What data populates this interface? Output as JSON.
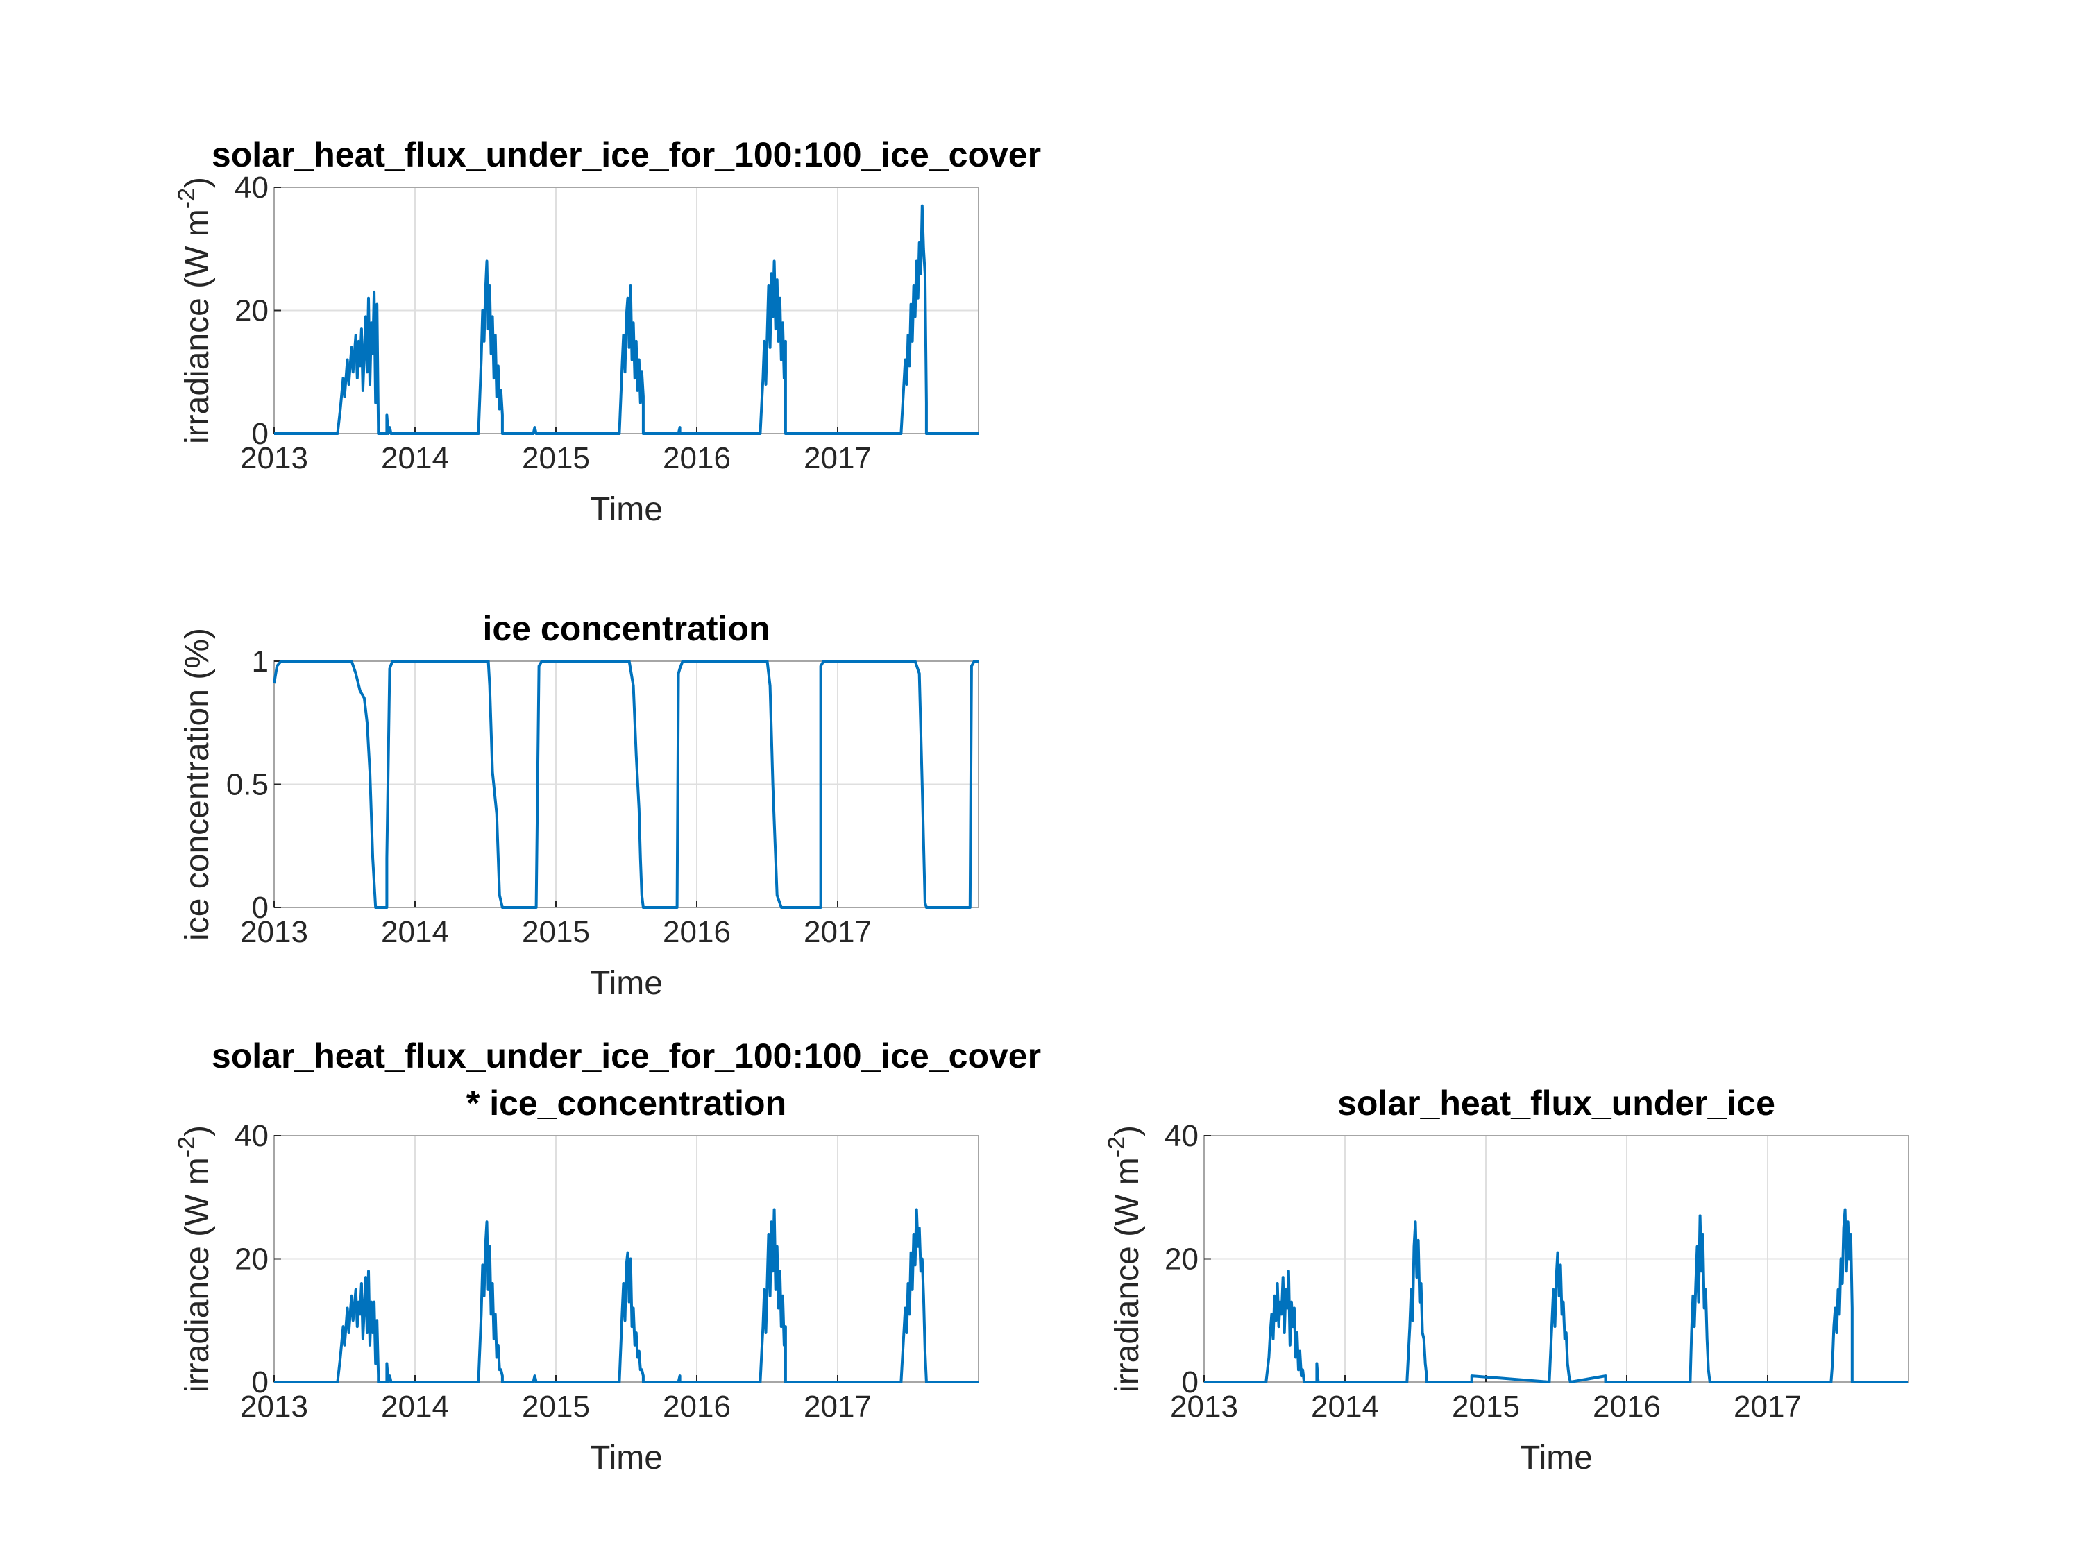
{
  "figure": {
    "background": "#ffffff",
    "line_color": "#0072bd"
  },
  "chart_data": [
    {
      "id": "p1",
      "type": "line",
      "title": [
        "solar_heat_flux_under_ice_for_100:100_ice_cover"
      ],
      "xlabel": "Time",
      "ylabel": "irradiance (W m",
      "ylabel_superscript": "-2",
      "ylabel_suffix": ")",
      "xlim": [
        2013.0,
        2018.0
      ],
      "ylim": [
        0,
        40
      ],
      "xticks": [
        "2013",
        "2014",
        "2015",
        "2016",
        "2017"
      ],
      "yticks": [
        "0",
        "20",
        "40"
      ],
      "grid": true,
      "series": [
        {
          "x": [
            2013.0,
            2013.45,
            2013.47,
            2013.49,
            2013.5,
            2013.52,
            2013.53,
            2013.55,
            2013.56,
            2013.58,
            2013.59,
            2013.6,
            2013.61,
            2013.62,
            2013.63,
            2013.64,
            2013.65,
            2013.66,
            2013.67,
            2013.68,
            2013.69,
            2013.7,
            2013.71,
            2013.72,
            2013.73,
            2013.74,
            2013.74,
            2013.8,
            2013.8,
            2013.81,
            2013.82,
            2013.83,
            2014.45,
            2014.47,
            2014.48,
            2014.49,
            2014.5,
            2014.51,
            2014.52,
            2014.53,
            2014.54,
            2014.55,
            2014.56,
            2014.57,
            2014.58,
            2014.59,
            2014.6,
            2014.61,
            2014.62,
            2014.62,
            2014.84,
            2014.85,
            2014.86,
            2014.86,
            2015.45,
            2015.47,
            2015.48,
            2015.49,
            2015.5,
            2015.51,
            2015.52,
            2015.53,
            2015.54,
            2015.55,
            2015.56,
            2015.57,
            2015.58,
            2015.59,
            2015.6,
            2015.61,
            2015.62,
            2015.62,
            2015.87,
            2015.88,
            2015.88,
            2016.45,
            2016.47,
            2016.48,
            2016.49,
            2016.5,
            2016.51,
            2016.52,
            2016.53,
            2016.54,
            2016.55,
            2016.56,
            2016.57,
            2016.58,
            2016.59,
            2016.6,
            2016.61,
            2016.62,
            2016.63,
            2016.63,
            2016.88,
            2016.88,
            2017.45,
            2017.46,
            2017.48,
            2017.49,
            2017.5,
            2017.51,
            2017.52,
            2017.53,
            2017.54,
            2017.55,
            2017.56,
            2017.57,
            2017.58,
            2017.59,
            2017.6,
            2017.61,
            2017.62,
            2017.63,
            2017.63,
            2017.95,
            2018.0
          ],
          "y": [
            0,
            0,
            4,
            9,
            6,
            12,
            8,
            14,
            10,
            16,
            9,
            15,
            11,
            17,
            7,
            13,
            19,
            10,
            22,
            8,
            18,
            13,
            23,
            5,
            21,
            1,
            0,
            0,
            3,
            0,
            1,
            0,
            0,
            12,
            20,
            15,
            23,
            28,
            17,
            24,
            13,
            19,
            9,
            16,
            6,
            11,
            4,
            7,
            3,
            0,
            0,
            1,
            0,
            0,
            0,
            11,
            16,
            10,
            19,
            22,
            14,
            24,
            12,
            18,
            9,
            15,
            7,
            12,
            5,
            10,
            6,
            0,
            0,
            1,
            0,
            0,
            9,
            15,
            8,
            16,
            24,
            14,
            26,
            19,
            28,
            17,
            25,
            15,
            22,
            12,
            18,
            9,
            15,
            0,
            0,
            0,
            0,
            4,
            12,
            8,
            16,
            11,
            21,
            15,
            24,
            19,
            28,
            22,
            31,
            26,
            37,
            30,
            26,
            5,
            0,
            0,
            0
          ]
        }
      ]
    },
    {
      "id": "p2",
      "type": "line",
      "title": [
        "ice concentration"
      ],
      "xlabel": "Time",
      "ylabel": "ice concentration (%)",
      "xlim": [
        2013.0,
        2018.0
      ],
      "ylim": [
        0,
        1
      ],
      "xticks": [
        "2013",
        "2014",
        "2015",
        "2016",
        "2017"
      ],
      "yticks": [
        "0",
        "0.5",
        "1"
      ],
      "grid": true,
      "series": [
        {
          "x": [
            2013.0,
            2013.02,
            2013.05,
            2013.55,
            2013.58,
            2013.61,
            2013.64,
            2013.66,
            2013.68,
            2013.7,
            2013.72,
            2013.74,
            2013.8,
            2013.8,
            2013.82,
            2013.84,
            2013.86,
            2014.52,
            2014.53,
            2014.55,
            2014.58,
            2014.6,
            2014.62,
            2014.64,
            2014.86,
            2014.88,
            2014.9,
            2015.52,
            2015.55,
            2015.57,
            2015.59,
            2015.6,
            2015.61,
            2015.62,
            2015.64,
            2015.86,
            2015.87,
            2015.88,
            2015.9,
            2015.92,
            2015.95,
            2016.5,
            2016.52,
            2016.54,
            2016.55,
            2016.57,
            2016.6,
            2016.61,
            2016.88,
            2016.88,
            2016.9,
            2017.55,
            2017.58,
            2017.6,
            2017.62,
            2017.63,
            2017.94,
            2017.95,
            2017.97,
            2018.0
          ],
          "y": [
            0.91,
            0.98,
            1.0,
            1.0,
            0.95,
            0.88,
            0.85,
            0.75,
            0.55,
            0.2,
            0.0,
            0.0,
            0.0,
            0.2,
            0.97,
            1.0,
            1.0,
            1.0,
            0.9,
            0.55,
            0.38,
            0.05,
            0.0,
            0.0,
            0.0,
            0.98,
            1.0,
            1.0,
            0.9,
            0.62,
            0.4,
            0.2,
            0.05,
            0.0,
            0.0,
            0.0,
            0.95,
            0.97,
            1.0,
            1.0,
            1.0,
            1.0,
            0.9,
            0.5,
            0.35,
            0.05,
            0.0,
            0.0,
            0.0,
            0.98,
            1.0,
            1.0,
            0.95,
            0.5,
            0.02,
            0.0,
            0.0,
            0.98,
            1.0,
            1.0
          ]
        }
      ]
    },
    {
      "id": "p3",
      "type": "line",
      "title": [
        "solar_heat_flux_under_ice_for_100:100_ice_cover",
        "* ice_concentration"
      ],
      "xlabel": "Time",
      "ylabel": "irradiance (W m",
      "ylabel_superscript": "-2",
      "ylabel_suffix": ")",
      "xlim": [
        2013.0,
        2018.0
      ],
      "ylim": [
        0,
        40
      ],
      "xticks": [
        "2013",
        "2014",
        "2015",
        "2016",
        "2017"
      ],
      "yticks": [
        "0",
        "20",
        "40"
      ],
      "grid": true,
      "series": [
        {
          "x": [
            2013.0,
            2013.45,
            2013.47,
            2013.49,
            2013.5,
            2013.52,
            2013.53,
            2013.55,
            2013.56,
            2013.58,
            2013.59,
            2013.6,
            2013.61,
            2013.62,
            2013.63,
            2013.64,
            2013.65,
            2013.66,
            2013.67,
            2013.68,
            2013.69,
            2013.7,
            2013.71,
            2013.72,
            2013.73,
            2013.74,
            2013.74,
            2013.8,
            2013.8,
            2013.81,
            2013.82,
            2013.83,
            2014.45,
            2014.47,
            2014.48,
            2014.49,
            2014.5,
            2014.51,
            2014.52,
            2014.53,
            2014.54,
            2014.55,
            2014.56,
            2014.57,
            2014.58,
            2014.59,
            2014.6,
            2014.61,
            2014.62,
            2014.62,
            2014.84,
            2014.85,
            2014.86,
            2014.86,
            2015.45,
            2015.47,
            2015.48,
            2015.49,
            2015.5,
            2015.51,
            2015.52,
            2015.53,
            2015.54,
            2015.55,
            2015.56,
            2015.57,
            2015.58,
            2015.59,
            2015.6,
            2015.61,
            2015.62,
            2015.62,
            2015.87,
            2015.88,
            2015.88,
            2016.45,
            2016.47,
            2016.48,
            2016.49,
            2016.5,
            2016.51,
            2016.52,
            2016.53,
            2016.54,
            2016.55,
            2016.56,
            2016.57,
            2016.58,
            2016.59,
            2016.6,
            2016.61,
            2016.62,
            2016.63,
            2016.63,
            2016.88,
            2016.88,
            2017.45,
            2017.46,
            2017.48,
            2017.49,
            2017.5,
            2017.51,
            2017.52,
            2017.53,
            2017.54,
            2017.55,
            2017.56,
            2017.57,
            2017.58,
            2017.59,
            2017.6,
            2017.61,
            2017.62,
            2017.63,
            2017.63,
            2017.95,
            2018.0
          ],
          "y": [
            0,
            0,
            4,
            9,
            6,
            12,
            8,
            14,
            10,
            15,
            9,
            13,
            11,
            16,
            7,
            12,
            17,
            8,
            18,
            6,
            13,
            8,
            13,
            3,
            10,
            1,
            0,
            0,
            3,
            0,
            1,
            0,
            0,
            11,
            19,
            14,
            22,
            26,
            15,
            22,
            11,
            16,
            7,
            11,
            4,
            6,
            2,
            2,
            1,
            0,
            0,
            1,
            0,
            0,
            0,
            11,
            16,
            10,
            19,
            21,
            13,
            20,
            9,
            12,
            6,
            8,
            4,
            5,
            2,
            2,
            1,
            0,
            0,
            1,
            0,
            0,
            9,
            15,
            8,
            16,
            24,
            14,
            26,
            18,
            28,
            15,
            22,
            12,
            18,
            9,
            14,
            6,
            9,
            0,
            0,
            0,
            0,
            4,
            12,
            8,
            16,
            11,
            21,
            15,
            24,
            19,
            28,
            22,
            25,
            18,
            20,
            14,
            5,
            0,
            0,
            0,
            0
          ]
        }
      ]
    },
    {
      "id": "p4",
      "type": "line",
      "title": [
        "solar_heat_flux_under_ice"
      ],
      "xlabel": "Time",
      "ylabel": "irradiance (W m",
      "ylabel_superscript": "-2",
      "ylabel_suffix": ")",
      "xlim": [
        2013.0,
        2018.0
      ],
      "ylim": [
        0,
        40
      ],
      "xticks": [
        "2013",
        "2014",
        "2015",
        "2016",
        "2017"
      ],
      "yticks": [
        "0",
        "20",
        "40"
      ],
      "grid": true,
      "series": [
        {
          "x": [
            2013.0,
            2013.44,
            2013.46,
            2013.47,
            2013.48,
            2013.49,
            2013.5,
            2013.51,
            2013.52,
            2013.53,
            2013.54,
            2013.55,
            2013.56,
            2013.57,
            2013.58,
            2013.59,
            2013.6,
            2013.61,
            2013.62,
            2013.63,
            2013.64,
            2013.65,
            2013.66,
            2013.67,
            2013.68,
            2013.69,
            2013.7,
            2013.71,
            2013.71,
            2013.8,
            2013.8,
            2013.81,
            2013.81,
            2014.44,
            2014.46,
            2014.47,
            2014.48,
            2014.49,
            2014.5,
            2014.51,
            2014.52,
            2014.53,
            2014.54,
            2014.55,
            2014.56,
            2014.57,
            2014.58,
            2014.58,
            2014.9,
            2014.9,
            2015.45,
            2015.47,
            2015.48,
            2015.49,
            2015.5,
            2015.51,
            2015.52,
            2015.53,
            2015.54,
            2015.55,
            2015.56,
            2015.57,
            2015.58,
            2015.59,
            2015.6,
            2015.6,
            2015.85,
            2015.85,
            2016.45,
            2016.46,
            2016.47,
            2016.48,
            2016.49,
            2016.5,
            2016.51,
            2016.52,
            2016.53,
            2016.54,
            2016.55,
            2016.56,
            2016.57,
            2016.58,
            2016.59,
            2016.59,
            2017.45,
            2017.46,
            2017.47,
            2017.48,
            2017.49,
            2017.5,
            2017.51,
            2017.52,
            2017.53,
            2017.54,
            2017.55,
            2017.56,
            2017.57,
            2017.58,
            2017.59,
            2017.6,
            2017.6,
            2018.0
          ],
          "y": [
            0,
            0,
            4,
            8,
            11,
            7,
            14,
            10,
            16,
            9,
            13,
            11,
            17,
            8,
            15,
            12,
            18,
            6,
            13,
            9,
            12,
            4,
            8,
            2,
            5,
            1,
            2,
            0,
            0,
            0,
            3,
            0,
            0,
            0,
            9,
            15,
            10,
            22,
            26,
            17,
            23,
            13,
            16,
            8,
            7,
            3,
            1,
            0,
            0,
            1,
            0,
            10,
            15,
            9,
            17,
            21,
            14,
            19,
            11,
            13,
            7,
            8,
            3,
            1,
            0,
            0,
            1,
            0,
            0,
            8,
            14,
            9,
            16,
            22,
            13,
            27,
            18,
            24,
            12,
            15,
            7,
            2,
            0,
            0,
            0,
            3,
            9,
            12,
            8,
            15,
            11,
            20,
            16,
            25,
            28,
            18,
            26,
            20,
            24,
            12,
            0,
            0
          ]
        }
      ]
    }
  ]
}
